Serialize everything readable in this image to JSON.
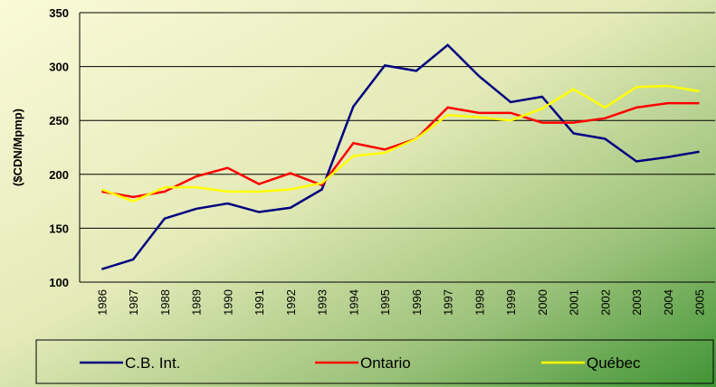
{
  "chart_data": {
    "type": "line",
    "y_label": "($CDN/Mpmp)",
    "categories": [
      "1986",
      "1987",
      "1988",
      "1989",
      "1990",
      "1991",
      "1992",
      "1993",
      "1994",
      "1995",
      "1996",
      "1997",
      "1998",
      "1999",
      "2000",
      "2001",
      "2002",
      "2003",
      "2004",
      "2005"
    ],
    "series": [
      {
        "name": "C.B. Int.",
        "color": "#000080",
        "values": [
          112,
          121,
          159,
          168,
          173,
          165,
          169,
          186,
          263,
          301,
          296,
          320,
          291,
          267,
          272,
          238,
          233,
          212,
          216,
          221
        ]
      },
      {
        "name": "Ontario",
        "color": "#ff0000",
        "values": [
          184,
          179,
          184,
          198,
          206,
          191,
          201,
          190,
          229,
          223,
          233,
          262,
          257,
          257,
          248,
          248,
          252,
          262,
          266,
          266
        ]
      },
      {
        "name": "Québec",
        "color": "#ffff00",
        "values": [
          186,
          175,
          188,
          188,
          184,
          184,
          186,
          192,
          217,
          220,
          233,
          255,
          253,
          250,
          261,
          279,
          262,
          281,
          282,
          277
        ]
      }
    ],
    "ylim": [
      100,
      350
    ],
    "yticks": [
      100,
      150,
      200,
      250,
      300,
      350
    ],
    "grid": true,
    "legend": "bottom"
  }
}
